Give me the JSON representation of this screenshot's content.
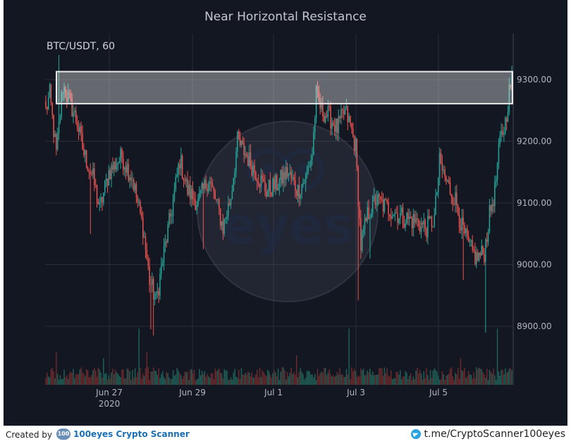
{
  "chart_data": {
    "type": "candlestick",
    "title": "Near Horizontal Resistance",
    "symbol_label": "BTC/USDT, 60",
    "xlabel": "",
    "ylabel": "",
    "x_ticks": [
      {
        "label": "Jun 27",
        "sub": "2020"
      },
      {
        "label": "Jun 29",
        "sub": ""
      },
      {
        "label": "Jul 1",
        "sub": ""
      },
      {
        "label": "Jul 3",
        "sub": ""
      },
      {
        "label": "Jul 5",
        "sub": ""
      }
    ],
    "y_ticks": [
      "9300.00",
      "9200.00",
      "9100.00",
      "9000.00",
      "8900.00"
    ],
    "y_tick_values": [
      9300,
      9200,
      9100,
      9000,
      8900
    ],
    "ylim": [
      8805,
      9345
    ],
    "resistance_zone": {
      "low": 9261,
      "high": 9313
    },
    "anchors": [
      [
        0,
        9250
      ],
      [
        3,
        9275
      ],
      [
        8,
        9180
      ],
      [
        13,
        9290
      ],
      [
        18,
        9265
      ],
      [
        24,
        9230
      ],
      [
        29,
        9180
      ],
      [
        36,
        9140
      ],
      [
        41,
        9090
      ],
      [
        48,
        9150
      ],
      [
        58,
        9175
      ],
      [
        66,
        9140
      ],
      [
        74,
        9060
      ],
      [
        79,
        8975
      ],
      [
        84,
        8940
      ],
      [
        90,
        9020
      ],
      [
        96,
        9090
      ],
      [
        102,
        9170
      ],
      [
        108,
        9120
      ],
      [
        116,
        9100
      ],
      [
        124,
        9140
      ],
      [
        130,
        9100
      ],
      [
        135,
        9060
      ],
      [
        141,
        9110
      ],
      [
        146,
        9200
      ],
      [
        152,
        9180
      ],
      [
        160,
        9150
      ],
      [
        168,
        9120
      ],
      [
        176,
        9130
      ],
      [
        184,
        9150
      ],
      [
        192,
        9120
      ],
      [
        198,
        9140
      ],
      [
        203,
        9180
      ],
      [
        206,
        9275
      ],
      [
        210,
        9250
      ],
      [
        216,
        9240
      ],
      [
        222,
        9220
      ],
      [
        228,
        9250
      ],
      [
        232,
        9225
      ],
      [
        236,
        9190
      ],
      [
        240,
        9030
      ],
      [
        245,
        9080
      ],
      [
        251,
        9105
      ],
      [
        258,
        9095
      ],
      [
        266,
        9085
      ],
      [
        274,
        9075
      ],
      [
        282,
        9070
      ],
      [
        290,
        9060
      ],
      [
        296,
        9075
      ],
      [
        300,
        9165
      ],
      [
        306,
        9130
      ],
      [
        312,
        9105
      ],
      [
        317,
        9060
      ],
      [
        322,
        9030
      ],
      [
        328,
        9010
      ],
      [
        334,
        9020
      ],
      [
        338,
        9080
      ],
      [
        342,
        9120
      ],
      [
        346,
        9200
      ],
      [
        350,
        9230
      ],
      [
        353,
        9280
      ],
      [
        355,
        9300
      ]
    ],
    "spikes": [
      {
        "i": 10,
        "high": 9340,
        "low": 9235
      },
      {
        "i": 34,
        "low": 9050
      },
      {
        "i": 80,
        "low": 8895
      },
      {
        "i": 82,
        "low": 8885
      },
      {
        "i": 120,
        "low": 9025
      },
      {
        "i": 206,
        "high": 9292
      },
      {
        "i": 230,
        "high": 9245
      },
      {
        "i": 238,
        "low": 8942
      },
      {
        "i": 247,
        "low": 9010
      },
      {
        "i": 252,
        "high": 9120
      },
      {
        "i": 300,
        "high": 9190
      },
      {
        "i": 318,
        "low": 8975
      },
      {
        "i": 335,
        "low": 8890
      },
      {
        "i": 355,
        "high": 9320
      }
    ],
    "volume_spikes": [
      [
        71,
        0.95
      ],
      [
        77,
        0.55
      ],
      [
        231,
        0.95
      ],
      [
        344,
        0.95
      ],
      [
        8,
        0.55
      ],
      [
        44,
        0.45
      ],
      [
        191,
        0.5
      ],
      [
        316,
        0.45
      ]
    ],
    "candle_count": 356,
    "up_color": "#26a69a",
    "down_color": "#ef5350",
    "grid": true
  },
  "footer": {
    "created_by": "Created by",
    "brand_logo_text": "100",
    "brand_name": "100eyes Crypto Scanner",
    "telegram_link": "t.me/CryptoScanner100eyes"
  }
}
